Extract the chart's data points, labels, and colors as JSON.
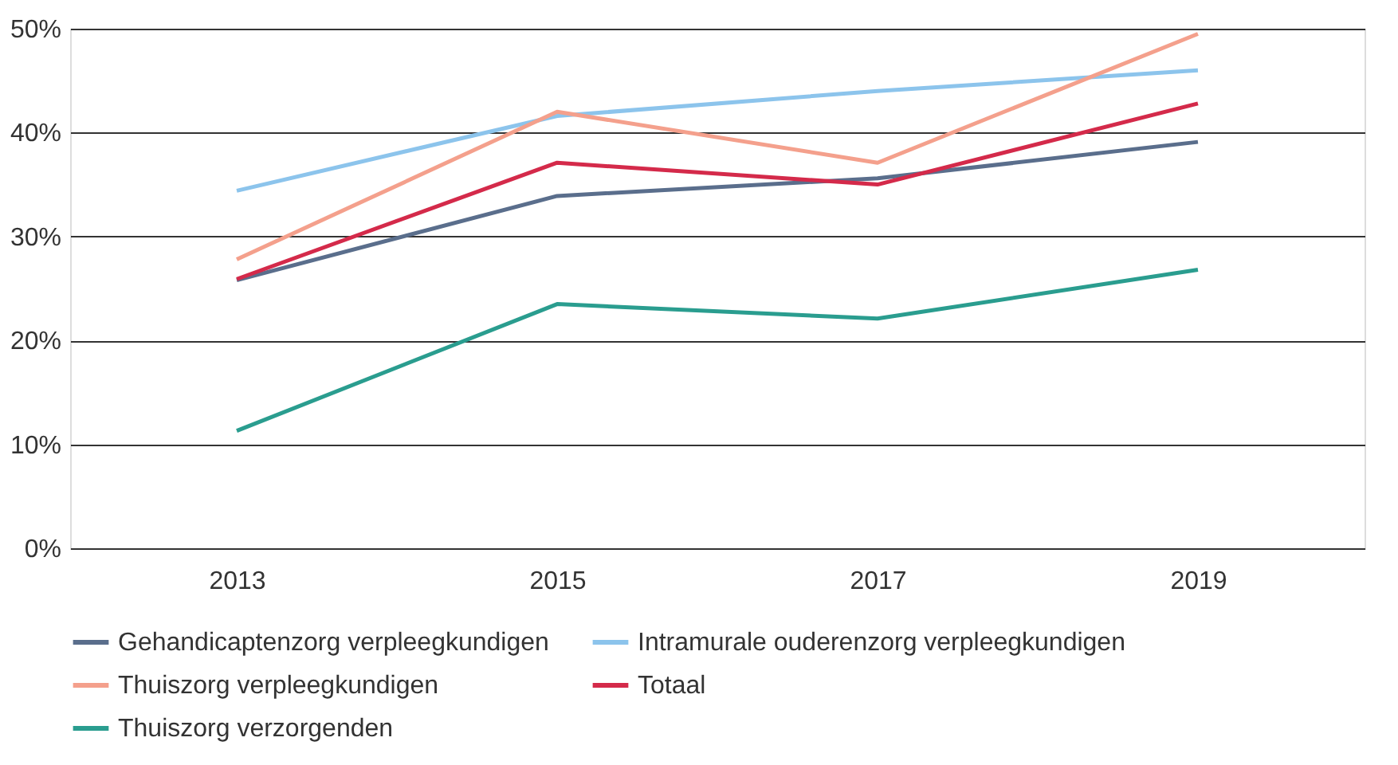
{
  "chart_data": {
    "type": "line",
    "categories": [
      "2013",
      "2015",
      "2017",
      "2019"
    ],
    "series": [
      {
        "name": "Gehandicaptenzorg verpleegkundigen",
        "color": "#5a6e8c",
        "values": [
          25.8,
          33.9,
          35.6,
          39.1
        ]
      },
      {
        "name": "Intramurale ouderenzorg verpleegkundigen",
        "color": "#8cc4ec",
        "values": [
          34.4,
          41.6,
          44.0,
          46.0
        ]
      },
      {
        "name": "Thuiszorg verpleegkundigen",
        "color": "#f4a08c",
        "values": [
          27.8,
          42.0,
          37.1,
          49.5
        ]
      },
      {
        "name": "Totaal",
        "color": "#d42a4a",
        "values": [
          25.9,
          37.1,
          35.0,
          42.8
        ]
      },
      {
        "name": "Thuiszorg verzorgenden",
        "color": "#2a9d8f",
        "values": [
          11.3,
          23.5,
          22.1,
          26.8
        ]
      }
    ],
    "ylim": [
      0,
      50
    ],
    "yticks": [
      {
        "value": 0,
        "label": "0%"
      },
      {
        "value": 10,
        "label": "10%"
      },
      {
        "value": 20,
        "label": "20%"
      },
      {
        "value": 30,
        "label": "30%"
      },
      {
        "value": 40,
        "label": "40%"
      },
      {
        "value": 50,
        "label": "50%"
      }
    ],
    "grid": "y",
    "legend": "bottom",
    "marker": "none",
    "line_style": "solid"
  }
}
